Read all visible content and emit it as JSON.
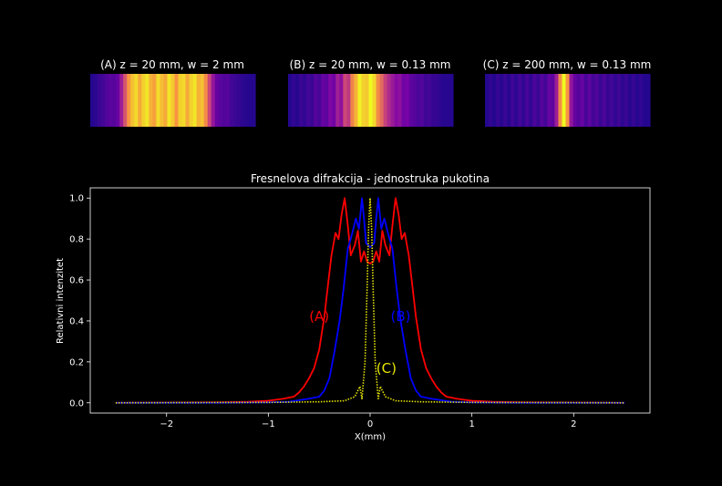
{
  "chart_data": [
    {
      "type": "heatmap",
      "title": "(A) z = 20 mm, w = 2 mm",
      "colormap": "plasma",
      "values": [
        0.05,
        0.07,
        0.1,
        0.12,
        0.15,
        0.17,
        0.16,
        0.2,
        0.35,
        0.55,
        0.75,
        0.86,
        0.92,
        0.8,
        0.9,
        0.95,
        0.82,
        0.78,
        0.93,
        0.85,
        0.8,
        0.95,
        0.88,
        0.75,
        0.9,
        0.92,
        0.8,
        0.9,
        0.95,
        0.82,
        0.86,
        0.72,
        0.5,
        0.32,
        0.2,
        0.17,
        0.15,
        0.16,
        0.12,
        0.1,
        0.09,
        0.07,
        0.06,
        0.05,
        0.05
      ]
    },
    {
      "type": "heatmap",
      "title": "(B) z = 20 mm, w = 0.13 mm",
      "colormap": "plasma",
      "values": [
        0.05,
        0.08,
        0.06,
        0.1,
        0.08,
        0.12,
        0.1,
        0.16,
        0.13,
        0.2,
        0.18,
        0.26,
        0.22,
        0.36,
        0.3,
        0.5,
        0.45,
        0.7,
        0.82,
        0.98,
        0.9,
        0.88,
        1.0,
        0.92,
        0.72,
        0.62,
        0.48,
        0.4,
        0.34,
        0.28,
        0.3,
        0.22,
        0.24,
        0.18,
        0.16,
        0.14,
        0.15,
        0.11,
        0.12,
        0.09,
        0.09,
        0.07,
        0.06,
        0.06,
        0.05
      ]
    },
    {
      "type": "heatmap",
      "title": "(C) z = 200 mm, w = 0.13 mm",
      "colormap": "plasma",
      "values": [
        0.05,
        0.08,
        0.05,
        0.09,
        0.06,
        0.1,
        0.06,
        0.11,
        0.07,
        0.12,
        0.08,
        0.13,
        0.08,
        0.14,
        0.1,
        0.16,
        0.12,
        0.2,
        0.18,
        0.35,
        0.72,
        1.0,
        0.75,
        0.32,
        0.2,
        0.16,
        0.2,
        0.13,
        0.18,
        0.12,
        0.15,
        0.1,
        0.14,
        0.09,
        0.12,
        0.08,
        0.11,
        0.07,
        0.1,
        0.06,
        0.09,
        0.06,
        0.08,
        0.05,
        0.05
      ]
    },
    {
      "type": "line",
      "title": "Fresnelova difrakcija - jednostruka pukotina",
      "xlabel": "X(mm)",
      "ylabel": "Relativni intenzitet",
      "xlim": [
        -2.75,
        2.75
      ],
      "ylim": [
        -0.05,
        1.05
      ],
      "xticks": [
        -2,
        -1,
        0,
        1,
        2
      ],
      "yticks": [
        0.0,
        0.2,
        0.4,
        0.6,
        0.8,
        1.0
      ],
      "xtick_labels": [
        "−2",
        "−1",
        "0",
        "1",
        "2"
      ],
      "ytick_labels": [
        "0.0",
        "0.2",
        "0.4",
        "0.6",
        "0.8",
        "1.0"
      ],
      "grid": false,
      "series": [
        {
          "name": "(A)",
          "color": "#ff0000",
          "style": "solid",
          "x": [
            -2.5,
            -1.5,
            -1.2,
            -1.0,
            -0.85,
            -0.75,
            -0.7,
            -0.65,
            -0.6,
            -0.55,
            -0.5,
            -0.45,
            -0.42,
            -0.38,
            -0.34,
            -0.31,
            -0.28,
            -0.25,
            -0.22,
            -0.19,
            -0.15,
            -0.12,
            -0.09,
            -0.06,
            -0.03,
            0.0,
            0.03,
            0.06,
            0.09,
            0.12,
            0.15,
            0.19,
            0.22,
            0.25,
            0.28,
            0.31,
            0.34,
            0.38,
            0.42,
            0.45,
            0.5,
            0.55,
            0.6,
            0.65,
            0.7,
            0.75,
            0.85,
            1.0,
            1.2,
            1.5,
            2.5
          ],
          "y": [
            0.0,
            0.002,
            0.005,
            0.01,
            0.02,
            0.03,
            0.05,
            0.08,
            0.12,
            0.17,
            0.26,
            0.42,
            0.55,
            0.72,
            0.83,
            0.8,
            0.92,
            1.0,
            0.87,
            0.72,
            0.77,
            0.84,
            0.69,
            0.74,
            0.69,
            0.68,
            0.69,
            0.74,
            0.69,
            0.84,
            0.77,
            0.72,
            0.87,
            1.0,
            0.92,
            0.8,
            0.83,
            0.72,
            0.55,
            0.42,
            0.26,
            0.17,
            0.12,
            0.08,
            0.05,
            0.03,
            0.02,
            0.01,
            0.005,
            0.002,
            0.0
          ]
        },
        {
          "name": "(B)",
          "color": "#0000ff",
          "style": "solid",
          "x": [
            -2.5,
            -1.5,
            -1.0,
            -0.8,
            -0.6,
            -0.5,
            -0.45,
            -0.4,
            -0.35,
            -0.3,
            -0.26,
            -0.22,
            -0.18,
            -0.14,
            -0.11,
            -0.08,
            -0.06,
            -0.04,
            -0.02,
            0.0,
            0.02,
            0.04,
            0.06,
            0.08,
            0.11,
            0.14,
            0.18,
            0.22,
            0.26,
            0.3,
            0.35,
            0.4,
            0.45,
            0.5,
            0.6,
            0.8,
            1.0,
            1.5,
            2.5
          ],
          "y": [
            0.0,
            0.0,
            0.002,
            0.005,
            0.02,
            0.03,
            0.06,
            0.12,
            0.25,
            0.4,
            0.56,
            0.75,
            0.82,
            0.9,
            0.85,
            1.0,
            0.9,
            0.78,
            0.77,
            0.76,
            0.77,
            0.78,
            0.9,
            1.0,
            0.85,
            0.9,
            0.82,
            0.75,
            0.56,
            0.4,
            0.25,
            0.12,
            0.06,
            0.03,
            0.02,
            0.005,
            0.002,
            0.0,
            0.0
          ]
        },
        {
          "name": "(C)",
          "color": "#e6e600",
          "style": "dotted",
          "x": [
            -2.5,
            -1.0,
            -0.5,
            -0.25,
            -0.15,
            -0.1,
            -0.08,
            -0.05,
            -0.03,
            -0.015,
            0.0,
            0.015,
            0.03,
            0.05,
            0.08,
            0.1,
            0.15,
            0.25,
            0.5,
            1.0,
            2.5
          ],
          "y": [
            0.0,
            0.002,
            0.005,
            0.01,
            0.03,
            0.08,
            0.02,
            0.2,
            0.55,
            0.85,
            1.0,
            0.85,
            0.55,
            0.2,
            0.02,
            0.08,
            0.03,
            0.01,
            0.005,
            0.002,
            0.0
          ]
        }
      ],
      "annotations": [
        {
          "text": "(A)",
          "x": -0.5,
          "y": 0.4,
          "color": "#ff0000"
        },
        {
          "text": "(B)",
          "x": 0.3,
          "y": 0.4,
          "color": "#0000ff"
        },
        {
          "text": "(C)",
          "x": 0.16,
          "y": 0.145,
          "color": "#e6e600"
        }
      ]
    }
  ]
}
